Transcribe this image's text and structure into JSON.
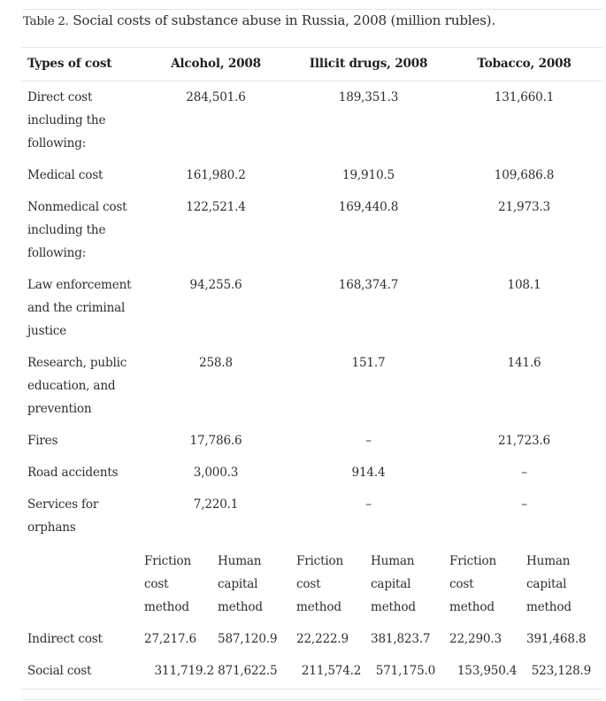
{
  "caption": {
    "label": "Table 2.",
    "text": " Social costs of substance abuse in Russia, 2008 (million rubles)."
  },
  "table": {
    "headers": [
      "Types of cost",
      "Alcohol, 2008",
      "Illicit drugs, 2008",
      "Tobacco, 2008"
    ],
    "rows": [
      {
        "label": "Direct cost including the following:",
        "values": [
          "284,501.6",
          "189,351.3",
          "131,660.1"
        ]
      },
      {
        "label": "Medical cost",
        "values": [
          "161,980.2",
          "19,910.5",
          "109,686.8"
        ]
      },
      {
        "label": "Nonmedical cost including the following:",
        "values": [
          "122,521.4",
          "169,440.8",
          "21,973.3"
        ]
      },
      {
        "label": "Law enforcement and the criminal justice",
        "values": [
          "94,255.6",
          "168,374.7",
          "108.1"
        ]
      },
      {
        "label": "Research, public education, and prevention",
        "values": [
          "258.8",
          "151.7",
          "141.6"
        ]
      },
      {
        "label": "Fires",
        "values": [
          "17,786.6",
          "–",
          "21,723.6"
        ]
      },
      {
        "label": "Road accidents",
        "values": [
          "3,000.3",
          "914.4",
          "–"
        ]
      },
      {
        "label": "Services for orphans",
        "values": [
          "7,220.1",
          "–",
          "–"
        ]
      }
    ],
    "method_headers": [
      "Friction cost method",
      "Human capital method",
      "Friction cost method",
      "Human capital method",
      "Friction cost method",
      "Human capital method"
    ],
    "indirect": {
      "label": "Indirect cost",
      "values": [
        "27,217.6",
        "587,120.9",
        "22,222.9",
        "381,823.7",
        "22,290.3",
        "391,468.8"
      ]
    },
    "social": {
      "label": "Social cost",
      "values": [
        "311,719.2",
        "871,622.5",
        "211,574.2",
        "571,175.0",
        "153,950.4",
        "523,128.9"
      ]
    }
  }
}
